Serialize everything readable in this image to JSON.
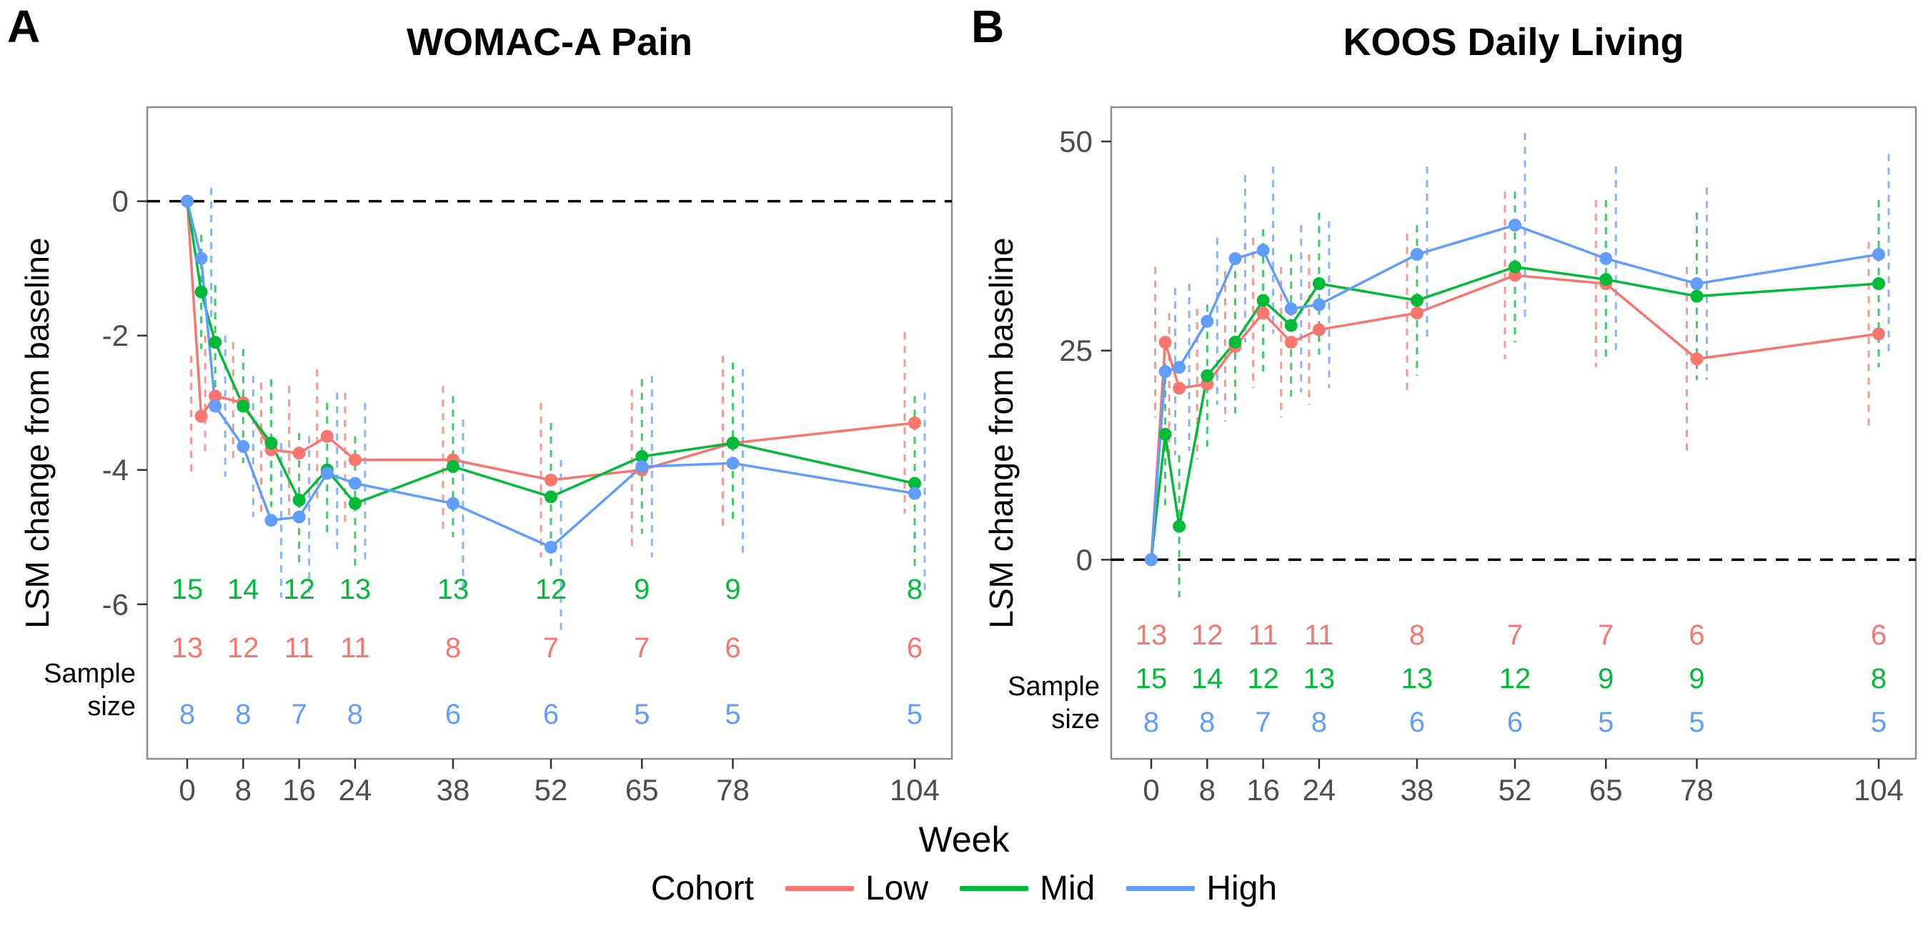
{
  "figure": {
    "panel_labels": [
      "A",
      "B"
    ],
    "xlabel": "Week",
    "legend": {
      "title": "Cohort",
      "items": [
        {
          "label": "Low",
          "color": "#F8766D"
        },
        {
          "label": "Mid",
          "color": "#00BA38"
        },
        {
          "label": "High",
          "color": "#619CFF"
        }
      ]
    },
    "colors": {
      "low": "#F8766D",
      "mid": "#00BA38",
      "high": "#619CFF",
      "reference_line": "#000000",
      "axis_text": "#4d4d4d",
      "panel_border": "#8c8c8c"
    }
  },
  "chart_data": [
    {
      "type": "line",
      "panel_label": "A",
      "title": "WOMAC-A Pain",
      "xlabel": "Week",
      "ylabel": "LSM change from baseline",
      "x": [
        0,
        2,
        4,
        8,
        12,
        16,
        20,
        24,
        38,
        52,
        65,
        78,
        104
      ],
      "x_ticks": [
        0,
        8,
        16,
        24,
        38,
        52,
        65,
        78,
        104
      ],
      "y_ticks": [
        0,
        -2,
        -4,
        -6
      ],
      "ylim": [
        -8.3,
        1.4
      ],
      "reference_line_y": 0,
      "error_bar_style": "dashed",
      "series": [
        {
          "name": "Low",
          "color": "#F8766D",
          "values": [
            0,
            -3.2,
            -2.9,
            -3.0,
            -3.7,
            -3.75,
            -3.5,
            -3.85,
            -3.85,
            -4.15,
            -4.0,
            -3.6,
            -3.3
          ],
          "ci_half_width": [
            0,
            0.9,
            0.9,
            0.9,
            1.0,
            1.0,
            1.0,
            1.0,
            1.1,
            1.15,
            1.2,
            1.3,
            1.35
          ]
        },
        {
          "name": "Mid",
          "color": "#00BA38",
          "values": [
            0,
            -1.35,
            -2.1,
            -3.05,
            -3.6,
            -4.45,
            -4.0,
            -4.5,
            -3.95,
            -4.4,
            -3.8,
            -3.6,
            -4.2
          ],
          "ci_half_width": [
            0,
            0.85,
            0.85,
            0.85,
            0.95,
            1.0,
            1.0,
            1.0,
            1.05,
            1.1,
            1.15,
            1.2,
            1.3
          ]
        },
        {
          "name": "High",
          "color": "#619CFF",
          "values": [
            0,
            -0.85,
            -3.05,
            -3.65,
            -4.75,
            -4.7,
            -4.05,
            -4.2,
            -4.5,
            -5.15,
            -3.95,
            -3.9,
            -4.35
          ],
          "ci_half_width": [
            0,
            1.05,
            1.05,
            1.05,
            1.15,
            1.2,
            1.2,
            1.2,
            1.25,
            1.3,
            1.35,
            1.4,
            1.5
          ]
        }
      ],
      "sample_size": {
        "label": "Sample size",
        "weeks": [
          0,
          8,
          16,
          24,
          38,
          52,
          65,
          78,
          104
        ],
        "rows": [
          {
            "cohort": "Mid",
            "color": "#00BA38",
            "values": [
              15,
              14,
              12,
              13,
              13,
              12,
              9,
              9,
              8
            ]
          },
          {
            "cohort": "Low",
            "color": "#F8766D",
            "values": [
              13,
              12,
              11,
              11,
              8,
              7,
              7,
              6,
              6
            ]
          },
          {
            "cohort": "High",
            "color": "#619CFF",
            "values": [
              8,
              8,
              7,
              8,
              6,
              6,
              5,
              5,
              5
            ]
          }
        ]
      }
    },
    {
      "type": "line",
      "panel_label": "B",
      "title": "KOOS Daily Living",
      "xlabel": "Week",
      "ylabel": "LSM change from baseline",
      "x": [
        0,
        2,
        4,
        8,
        12,
        16,
        20,
        24,
        38,
        52,
        65,
        78,
        104
      ],
      "x_ticks": [
        0,
        8,
        16,
        24,
        38,
        52,
        65,
        78,
        104
      ],
      "y_ticks": [
        0,
        25,
        50
      ],
      "ylim": [
        -23.8,
        54.1
      ],
      "reference_line_y": 0,
      "error_bar_style": "dashed",
      "series": [
        {
          "name": "Low",
          "color": "#F8766D",
          "values": [
            0,
            26,
            20.5,
            21,
            25.5,
            29.5,
            26,
            27.5,
            29.5,
            34,
            33,
            24,
            27
          ],
          "ci_half_width": [
            0,
            9,
            9,
            9,
            9,
            9,
            9,
            9,
            9.5,
            10,
            10,
            11,
            11
          ]
        },
        {
          "name": "Mid",
          "color": "#00BA38",
          "values": [
            0,
            15,
            4,
            22,
            26,
            31,
            28,
            33,
            31,
            35,
            33.5,
            31.5,
            33
          ],
          "ci_half_width": [
            0,
            8.5,
            8.5,
            8.5,
            8.5,
            8.5,
            8.5,
            8.5,
            9,
            9,
            9.5,
            10,
            10
          ]
        },
        {
          "name": "High",
          "color": "#619CFF",
          "values": [
            0,
            22.5,
            23,
            28.5,
            36,
            37,
            30,
            30.5,
            36.5,
            40,
            36,
            33,
            36.5
          ],
          "ci_half_width": [
            0,
            10,
            10,
            10,
            10,
            10,
            10,
            10,
            10.5,
            11,
            11,
            11.5,
            12
          ]
        }
      ],
      "sample_size": {
        "label": "Sample size",
        "weeks": [
          0,
          8,
          16,
          24,
          38,
          52,
          65,
          78,
          104
        ],
        "rows": [
          {
            "cohort": "Low",
            "color": "#F8766D",
            "values": [
              13,
              12,
              11,
              11,
              8,
              7,
              7,
              6,
              6
            ]
          },
          {
            "cohort": "Mid",
            "color": "#00BA38",
            "values": [
              15,
              14,
              12,
              13,
              13,
              12,
              9,
              9,
              8
            ]
          },
          {
            "cohort": "High",
            "color": "#619CFF",
            "values": [
              8,
              8,
              7,
              8,
              6,
              6,
              5,
              5,
              5
            ]
          }
        ]
      }
    }
  ]
}
